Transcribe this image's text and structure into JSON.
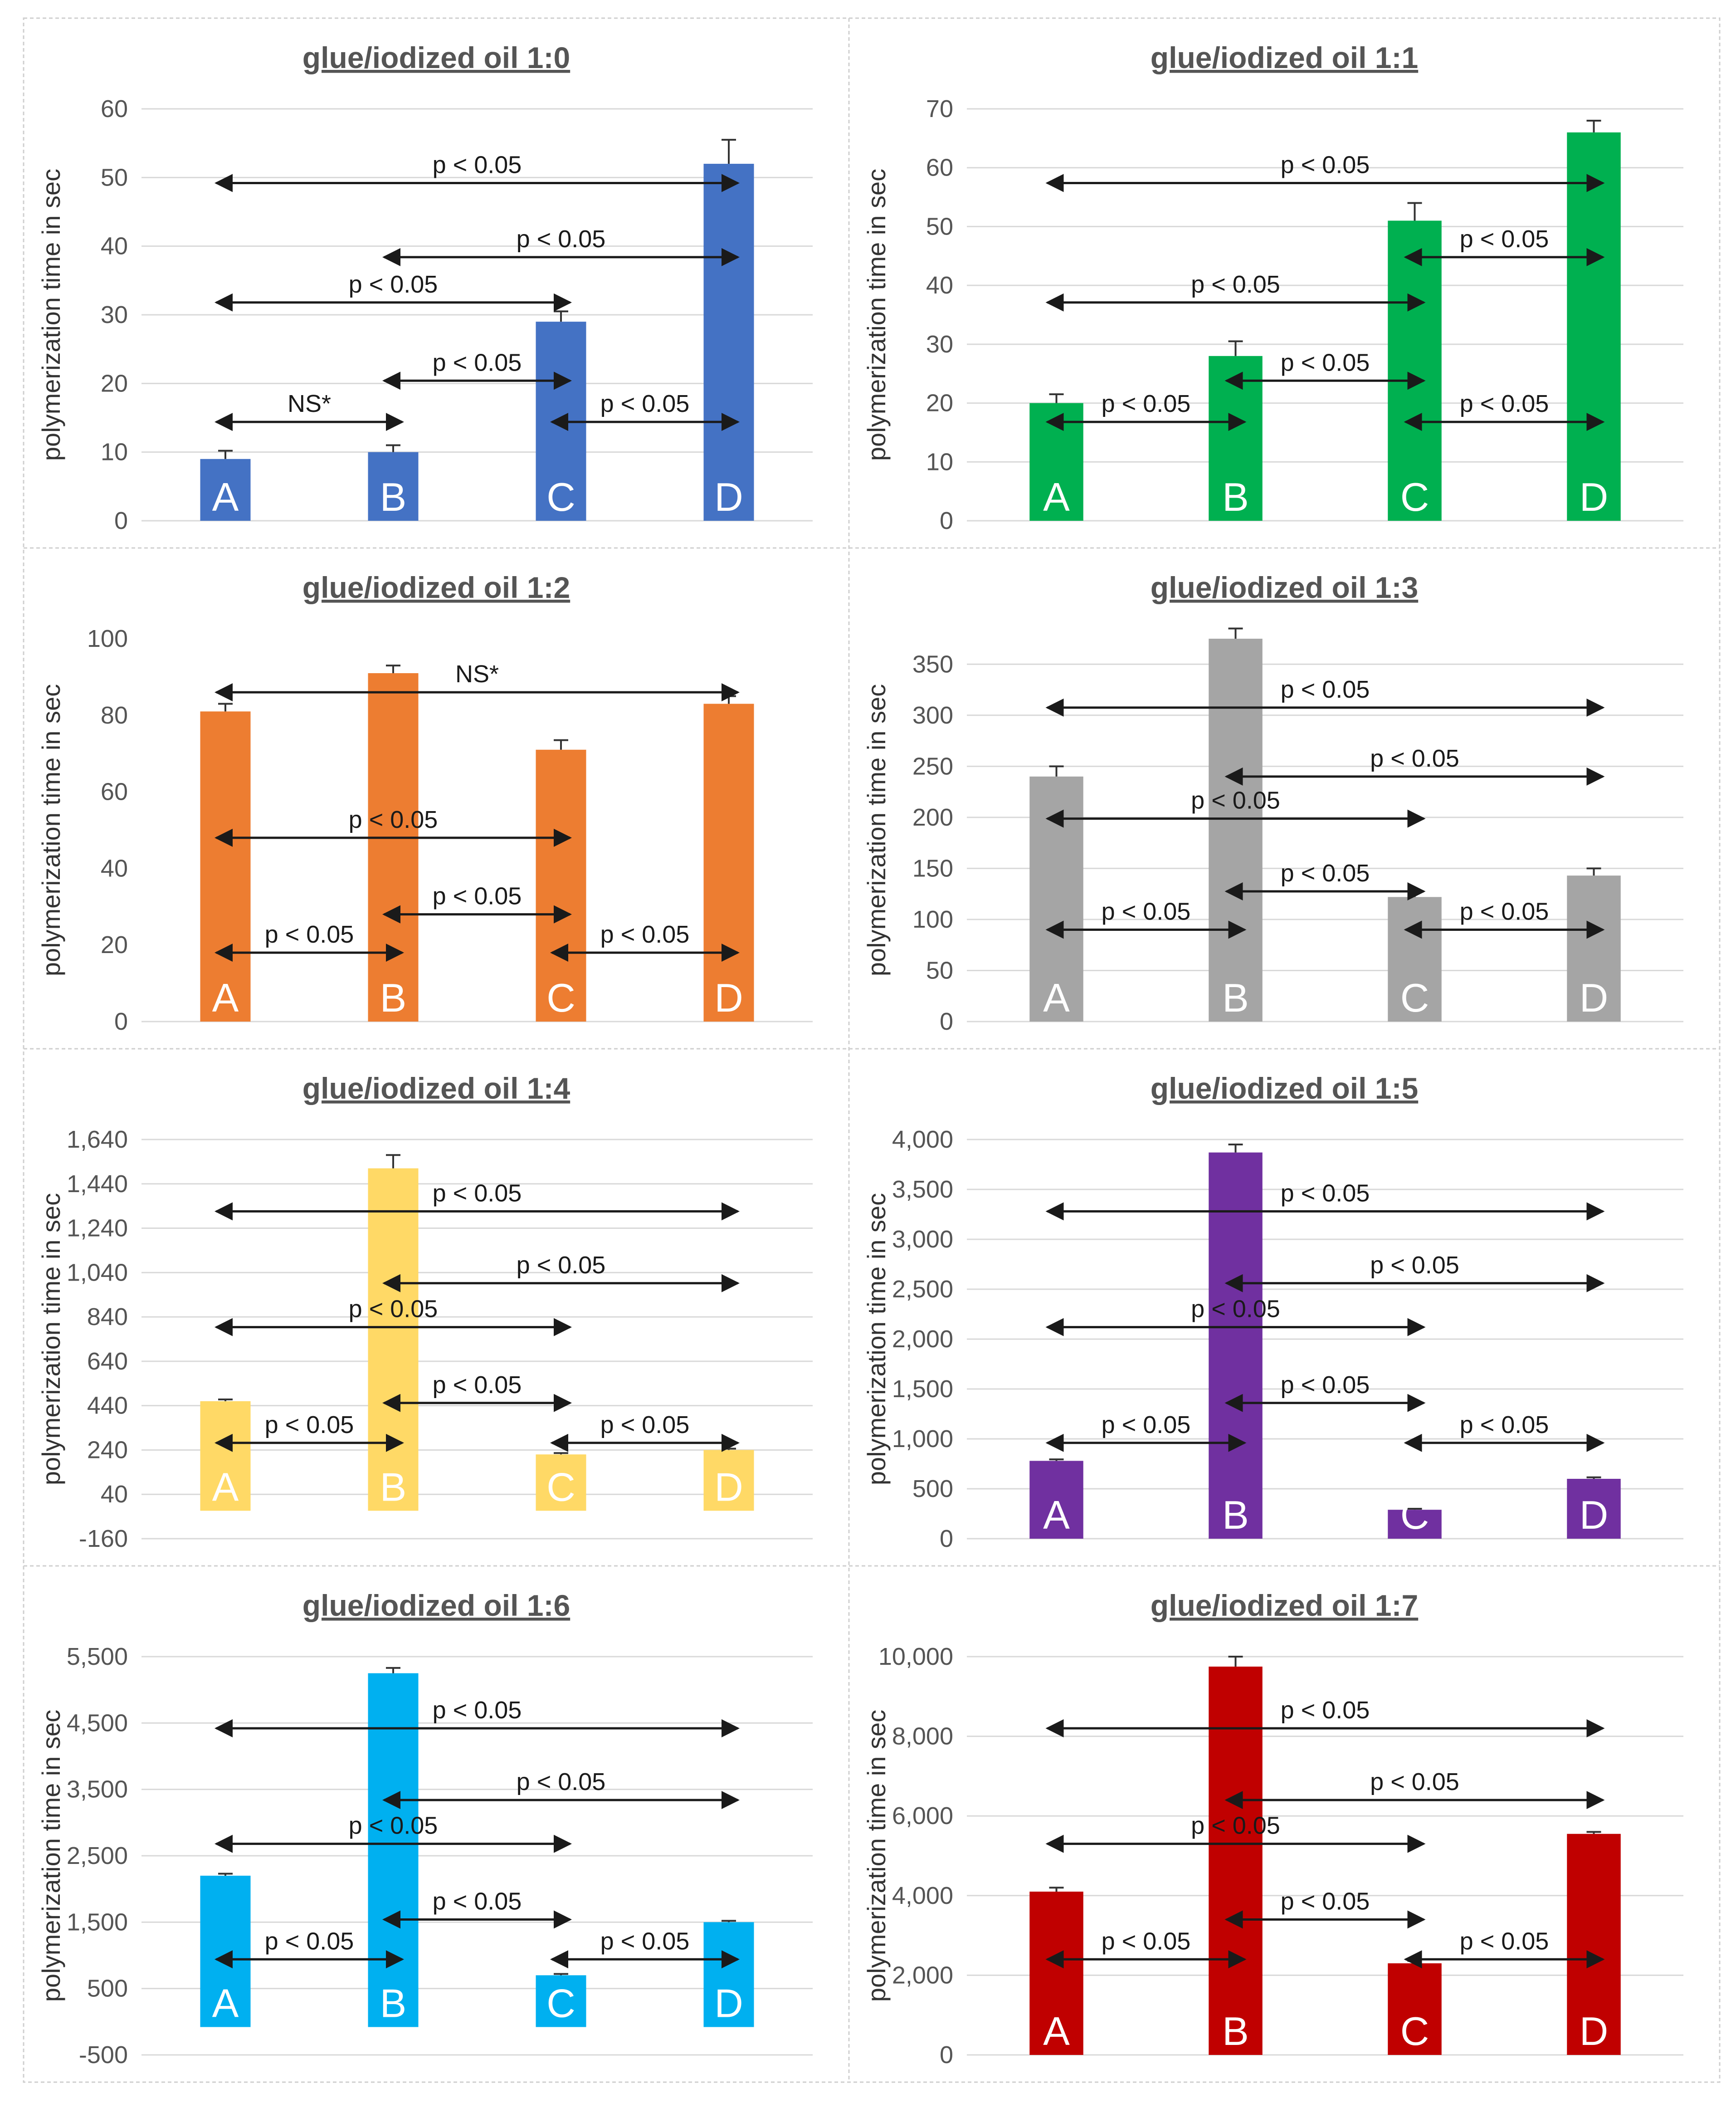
{
  "chart_data": [
    {
      "type": "bar",
      "title": "glue/iodized oil 1:0",
      "ylabel": "polymerization time in sec",
      "categories": [
        "A",
        "B",
        "C",
        "D"
      ],
      "values": [
        9,
        10,
        29,
        52
      ],
      "errors": [
        1.2,
        1,
        1.5,
        3.5
      ],
      "ylim": [
        0,
        60
      ],
      "yticks": [
        "0",
        "10",
        "20",
        "30",
        "40",
        "50",
        "60"
      ],
      "color": "#4472C4",
      "grid": true,
      "annotations": [
        {
          "from": "A",
          "to": "D",
          "text": "p < 0.05"
        },
        {
          "from": "B",
          "to": "D",
          "text": "p < 0.05"
        },
        {
          "from": "A",
          "to": "C",
          "text": "p < 0.05"
        },
        {
          "from": "B",
          "to": "C",
          "text": "p < 0.05"
        },
        {
          "from": "A",
          "to": "B",
          "text": "NS*"
        },
        {
          "from": "C",
          "to": "D",
          "text": "p < 0.05"
        }
      ]
    },
    {
      "type": "bar",
      "title": "glue/iodized oil  1:1",
      "ylabel": "polymerization time in sec",
      "categories": [
        "A",
        "B",
        "C",
        "D"
      ],
      "values": [
        20,
        28,
        51,
        66
      ],
      "errors": [
        1.5,
        2.5,
        3,
        2
      ],
      "ylim": [
        0,
        70
      ],
      "yticks": [
        "0",
        "10",
        "20",
        "30",
        "40",
        "50",
        "60",
        "70"
      ],
      "color": "#00B050",
      "grid": true,
      "annotations": [
        {
          "from": "A",
          "to": "D",
          "text": "p < 0.05"
        },
        {
          "from": "C",
          "to": "D",
          "text": "p < 0.05"
        },
        {
          "from": "A",
          "to": "C",
          "text": "p < 0.05"
        },
        {
          "from": "B",
          "to": "C",
          "text": "p < 0.05"
        },
        {
          "from": "A",
          "to": "B",
          "text": "p < 0.05"
        },
        {
          "from": "C",
          "to": "D",
          "text": "p < 0.05"
        }
      ]
    },
    {
      "type": "bar",
      "title": "glue/iodized oil 1:2",
      "ylabel": "polymerization time in sec",
      "categories": [
        "A",
        "B",
        "C",
        "D"
      ],
      "values": [
        81,
        91,
        71,
        83
      ],
      "errors": [
        2,
        2,
        2.5,
        2
      ],
      "ylim": [
        0,
        100
      ],
      "yticks": [
        "0",
        "20",
        "40",
        "60",
        "80",
        "100"
      ],
      "color": "#ED7D31",
      "grid": false,
      "annotations": [
        {
          "from": "A",
          "to": "D",
          "text": "NS*"
        },
        {
          "from": "A",
          "to": "C",
          "text": "p < 0.05"
        },
        {
          "from": "B",
          "to": "C",
          "text": "p < 0.05"
        },
        {
          "from": "A",
          "to": "B",
          "text": "p < 0.05"
        },
        {
          "from": "C",
          "to": "D",
          "text": "p < 0.05"
        }
      ]
    },
    {
      "type": "bar",
      "title": "glue/iodized oil  1:3",
      "ylabel": "polymerization time in sec",
      "categories": [
        "A",
        "B",
        "C",
        "D"
      ],
      "values": [
        240,
        375,
        122,
        143
      ],
      "errors": [
        10,
        10,
        5,
        7
      ],
      "ylim": [
        0,
        375
      ],
      "yticks": [
        "0",
        "50",
        "100",
        "150",
        "200",
        "250",
        "300",
        "350"
      ],
      "color": "#A5A5A5",
      "grid": true,
      "annotations": [
        {
          "from": "A",
          "to": "D",
          "text": "p < 0.05"
        },
        {
          "from": "B",
          "to": "D",
          "text": "p < 0.05"
        },
        {
          "from": "A",
          "to": "C",
          "text": "p < 0.05"
        },
        {
          "from": "B",
          "to": "C",
          "text": "p < 0.05"
        },
        {
          "from": "A",
          "to": "B",
          "text": "p < 0.05"
        },
        {
          "from": "C",
          "to": "D",
          "text": "p < 0.05"
        }
      ]
    },
    {
      "type": "bar",
      "title": "glue/iodized oil  1:4",
      "ylabel": "polymerization time in sec",
      "categories": [
        "A",
        "B",
        "C",
        "D"
      ],
      "values": [
        460,
        1510,
        220,
        240
      ],
      "errors": [
        8,
        60,
        6,
        6
      ],
      "ylim": [
        -160,
        1640
      ],
      "yticks": [
        "-160",
        "40",
        "240",
        "440",
        "640",
        "840",
        "1,040",
        "1,240",
        "1,440",
        "1,640"
      ],
      "color": "#FFD966",
      "grid": true,
      "annotations": [
        {
          "from": "A",
          "to": "D",
          "text": "p < 0.05"
        },
        {
          "from": "B",
          "to": "D",
          "text": "p < 0.05"
        },
        {
          "from": "A",
          "to": "C",
          "text": "p < 0.05"
        },
        {
          "from": "B",
          "to": "C",
          "text": "p < 0.05"
        },
        {
          "from": "A",
          "to": "B",
          "text": "p < 0.05"
        },
        {
          "from": "C",
          "to": "D",
          "text": "p < 0.05"
        }
      ]
    },
    {
      "type": "bar",
      "title": "glue/iodized oil  1:5",
      "ylabel": "polymerization time in sec",
      "categories": [
        "A",
        "B",
        "C",
        "D"
      ],
      "values": [
        780,
        3870,
        290,
        600
      ],
      "errors": [
        15,
        80,
        10,
        15
      ],
      "ylim": [
        0,
        4000
      ],
      "yticks": [
        "0",
        "500",
        "1,000",
        "1,500",
        "2,000",
        "2,500",
        "3,000",
        "3,500",
        "4,000"
      ],
      "color": "#7030A0",
      "grid": true,
      "annotations": [
        {
          "from": "A",
          "to": "D",
          "text": "p < 0.05"
        },
        {
          "from": "B",
          "to": "D",
          "text": "p < 0.05"
        },
        {
          "from": "A",
          "to": "C",
          "text": "p < 0.05"
        },
        {
          "from": "B",
          "to": "C",
          "text": "p < 0.05"
        },
        {
          "from": "A",
          "to": "B",
          "text": "p < 0.05"
        },
        {
          "from": "C",
          "to": "D",
          "text": "p < 0.05"
        }
      ]
    },
    {
      "type": "bar",
      "title": "glue/iodized oil  1:6",
      "ylabel": "polymerization time in sec",
      "categories": [
        "A",
        "B",
        "C",
        "D"
      ],
      "values": [
        2200,
        5250,
        700,
        1500
      ],
      "errors": [
        30,
        80,
        20,
        20
      ],
      "ylim": [
        -500,
        5500
      ],
      "yticks": [
        "-500",
        "500",
        "1,500",
        "2,500",
        "3,500",
        "4,500",
        "5,500"
      ],
      "color": "#00B0F0",
      "grid": true,
      "annotations": [
        {
          "from": "A",
          "to": "D",
          "text": "p < 0.05"
        },
        {
          "from": "B",
          "to": "D",
          "text": "p < 0.05"
        },
        {
          "from": "A",
          "to": "C",
          "text": "p < 0.05"
        },
        {
          "from": "B",
          "to": "C",
          "text": "p < 0.05"
        },
        {
          "from": "A",
          "to": "B",
          "text": "p < 0.05"
        },
        {
          "from": "C",
          "to": "D",
          "text": "p < 0.05"
        }
      ]
    },
    {
      "type": "bar",
      "title": "glue/iodized oil  1:7",
      "ylabel": "polymerization time in sec",
      "categories": [
        "A",
        "B",
        "C",
        "D"
      ],
      "values": [
        4100,
        9750,
        2300,
        5550
      ],
      "errors": [
        100,
        250,
        60,
        50
      ],
      "ylim": [
        0,
        10000
      ],
      "yticks": [
        "0",
        "2,000",
        "4,000",
        "6,000",
        "8,000",
        "10,000"
      ],
      "color": "#C00000",
      "grid": true,
      "annotations": [
        {
          "from": "A",
          "to": "D",
          "text": "p < 0.05"
        },
        {
          "from": "B",
          "to": "D",
          "text": "p < 0.05"
        },
        {
          "from": "A",
          "to": "C",
          "text": "p < 0.05"
        },
        {
          "from": "B",
          "to": "C",
          "text": "p < 0.05"
        },
        {
          "from": "A",
          "to": "B",
          "text": "p < 0.05"
        },
        {
          "from": "C",
          "to": "D",
          "text": "p < 0.05"
        }
      ]
    }
  ]
}
